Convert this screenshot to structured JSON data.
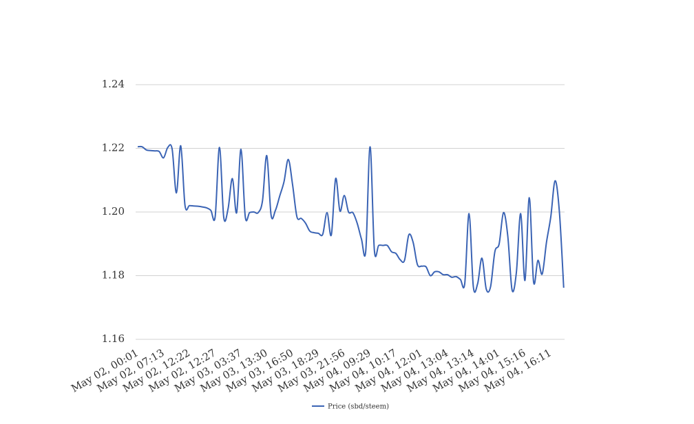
{
  "chart_data": {
    "type": "line",
    "categories": [
      "May 02, 00:01",
      null,
      null,
      null,
      null,
      null,
      "May 02, 07:13",
      null,
      null,
      null,
      null,
      null,
      "May 02, 12:22",
      null,
      null,
      null,
      null,
      null,
      "May 02, 12:27",
      null,
      null,
      null,
      null,
      null,
      "May 03, 03:37",
      null,
      null,
      null,
      null,
      null,
      "May 03, 13:30",
      null,
      null,
      null,
      null,
      null,
      "May 03, 16:50",
      null,
      null,
      null,
      null,
      null,
      "May 03, 18:29",
      null,
      null,
      null,
      null,
      null,
      "May 03, 21:56",
      null,
      null,
      null,
      null,
      null,
      "May 04, 09:29",
      null,
      null,
      null,
      null,
      null,
      "May 04, 10:17",
      null,
      null,
      null,
      null,
      null,
      "May 04, 12:01",
      null,
      null,
      null,
      null,
      null,
      "May 04, 13:04",
      null,
      null,
      null,
      null,
      null,
      "May 04, 13:14",
      null,
      null,
      null,
      null,
      null,
      "May 04, 14:01",
      null,
      null,
      null,
      null,
      null,
      "May 04, 15:16",
      null,
      null,
      null,
      null,
      null,
      "May 04, 16:11",
      null,
      null,
      null
    ],
    "series": [
      {
        "name": "Price (sbd/steem)",
        "color": "#3a63b4",
        "values": [
          1.2205,
          1.2205,
          1.2195,
          1.2193,
          1.2192,
          1.219,
          1.217,
          1.2203,
          1.2198,
          1.206,
          1.2208,
          1.202,
          1.202,
          1.2019,
          1.2018,
          1.2016,
          1.2013,
          1.2005,
          1.1985,
          1.2203,
          1.1983,
          1.201,
          1.2105,
          1.1998,
          1.2197,
          1.1985,
          1.1998,
          1.2,
          1.1998,
          1.2035,
          1.2177,
          1.199,
          1.2005,
          1.205,
          1.2095,
          1.2165,
          1.2085,
          1.1985,
          1.198,
          1.1965,
          1.194,
          1.1935,
          1.1933,
          1.193,
          1.1998,
          1.1928,
          1.2105,
          1.2003,
          1.2052,
          1.2,
          1.1998,
          1.1965,
          1.1915,
          1.1878,
          1.2205,
          1.188,
          1.1895,
          1.1895,
          1.1895,
          1.1875,
          1.187,
          1.185,
          1.1848,
          1.1928,
          1.1905,
          1.1835,
          1.183,
          1.1828,
          1.18,
          1.1812,
          1.1812,
          1.1803,
          1.1803,
          1.1795,
          1.1797,
          1.1788,
          1.1775,
          1.1995,
          1.1765,
          1.1775,
          1.1855,
          1.1758,
          1.1765,
          1.1875,
          1.19,
          1.1998,
          1.1925,
          1.1755,
          1.181,
          1.1995,
          1.1785,
          1.2045,
          1.178,
          1.1848,
          1.1805,
          1.1905,
          1.1985,
          1.2098,
          1.2,
          1.1762
        ]
      }
    ],
    "ylim": [
      1.16,
      1.24
    ],
    "yticks": [
      1.16,
      1.18,
      {
        "value": 1.2,
        "label": "1.20"
      },
      1.22,
      1.24
    ],
    "grid": true,
    "legend": "bottom"
  }
}
